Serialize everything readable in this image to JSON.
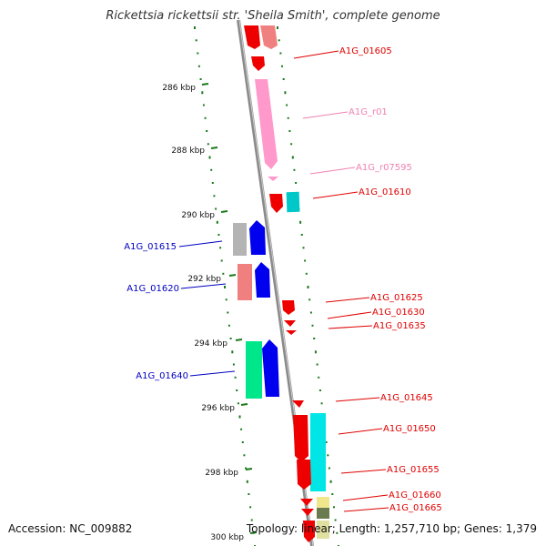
{
  "title": "Rickettsia rickettsii str. 'Sheila Smith', complete genome",
  "accession_text": "Accession: NC_009882",
  "topology_text": "Topology: linear; Length: 1,257,710 bp; Genes: 1,379",
  "colors": {
    "background": "#ffffff",
    "axis": "#8a8a8a",
    "dots": "#1a7a1a",
    "label_red": "#e00000",
    "label_blue": "#0000c0",
    "label_pink": "#f080b0"
  },
  "kbp_ticks": [
    "286 kbp",
    "288 kbp",
    "290 kbp",
    "292 kbp",
    "294 kbp",
    "296 kbp",
    "298 kbp",
    "300 kbp"
  ],
  "gene_labels": [
    {
      "id": "A1G_01605",
      "text": "A1G_01605",
      "color": "red",
      "side": "right"
    },
    {
      "id": "A1G_r01",
      "text": "A1G_r01",
      "color": "pink",
      "side": "right"
    },
    {
      "id": "A1G_r07595",
      "text": "A1G_r07595",
      "color": "pink",
      "side": "right"
    },
    {
      "id": "A1G_01610",
      "text": "A1G_01610",
      "color": "red",
      "side": "right"
    },
    {
      "id": "A1G_01615",
      "text": "A1G_01615",
      "color": "blue",
      "side": "left"
    },
    {
      "id": "A1G_01620",
      "text": "A1G_01620",
      "color": "blue",
      "side": "left"
    },
    {
      "id": "A1G_01625",
      "text": "A1G_01625",
      "color": "red",
      "side": "right"
    },
    {
      "id": "A1G_01630",
      "text": "A1G_01630",
      "color": "red",
      "side": "right"
    },
    {
      "id": "A1G_01635",
      "text": "A1G_01635",
      "color": "red",
      "side": "right"
    },
    {
      "id": "A1G_01640",
      "text": "A1G_01640",
      "color": "blue",
      "side": "left"
    },
    {
      "id": "A1G_01645",
      "text": "A1G_01645",
      "color": "red",
      "side": "right"
    },
    {
      "id": "A1G_01650",
      "text": "A1G_01650",
      "color": "red",
      "side": "right"
    },
    {
      "id": "A1G_01655",
      "text": "A1G_01655",
      "color": "red",
      "side": "right"
    },
    {
      "id": "A1G_01660",
      "text": "A1G_01660",
      "color": "red",
      "side": "right"
    },
    {
      "id": "A1G_01665",
      "text": "A1G_01665",
      "color": "red",
      "side": "right"
    }
  ]
}
